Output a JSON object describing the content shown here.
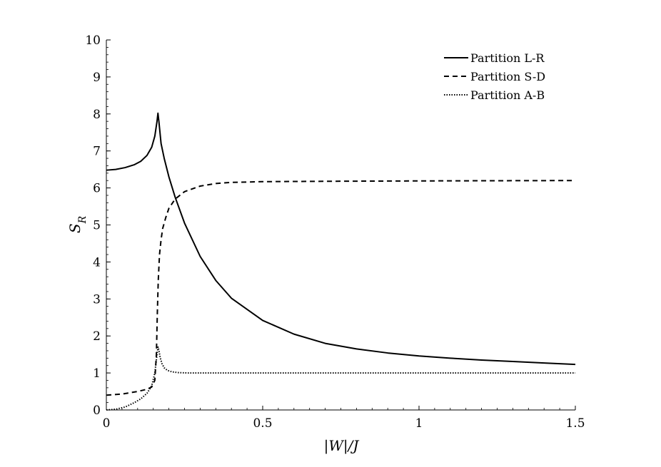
{
  "chart_data": {
    "type": "line",
    "title": "",
    "xlabel": "|W|/J",
    "ylabel": "S_R",
    "xlim": [
      0,
      1.5
    ],
    "ylim": [
      0,
      10
    ],
    "x_ticks": [
      0,
      0.5,
      1,
      1.5
    ],
    "x_tick_labels": [
      "0",
      "0.5",
      "1",
      "1.5"
    ],
    "y_ticks": [
      0,
      1,
      2,
      3,
      4,
      5,
      6,
      7,
      8,
      9,
      10
    ],
    "y_tick_labels": [
      "0",
      "1",
      "2",
      "3",
      "4",
      "5",
      "6",
      "7",
      "8",
      "9",
      "10"
    ],
    "grid": false,
    "legend_position": "top-right",
    "series": [
      {
        "name": "Partition L-R",
        "style": "solid",
        "x": [
          0,
          0.03,
          0.06,
          0.09,
          0.11,
          0.13,
          0.145,
          0.155,
          0.162,
          0.165,
          0.168,
          0.175,
          0.185,
          0.2,
          0.22,
          0.25,
          0.3,
          0.35,
          0.4,
          0.5,
          0.6,
          0.7,
          0.8,
          0.9,
          1.0,
          1.1,
          1.2,
          1.3,
          1.4,
          1.5
        ],
        "y": [
          6.48,
          6.5,
          6.55,
          6.63,
          6.72,
          6.88,
          7.1,
          7.4,
          7.8,
          8.02,
          7.8,
          7.2,
          6.8,
          6.3,
          5.75,
          5.05,
          4.15,
          3.5,
          3.02,
          2.42,
          2.05,
          1.8,
          1.65,
          1.54,
          1.46,
          1.4,
          1.35,
          1.31,
          1.27,
          1.23
        ]
      },
      {
        "name": "Partition S-D",
        "style": "dashed",
        "x": [
          0,
          0.05,
          0.1,
          0.13,
          0.145,
          0.155,
          0.16,
          0.163,
          0.166,
          0.17,
          0.175,
          0.18,
          0.19,
          0.2,
          0.22,
          0.25,
          0.3,
          0.35,
          0.4,
          0.5,
          0.7,
          1.0,
          1.5
        ],
        "y": [
          0.4,
          0.43,
          0.5,
          0.56,
          0.62,
          0.8,
          1.5,
          2.6,
          3.5,
          4.2,
          4.6,
          4.9,
          5.2,
          5.45,
          5.7,
          5.9,
          6.05,
          6.12,
          6.15,
          6.17,
          6.18,
          6.19,
          6.2
        ]
      },
      {
        "name": "Partition A-B",
        "style": "dotted",
        "x": [
          0,
          0.03,
          0.06,
          0.09,
          0.11,
          0.13,
          0.145,
          0.155,
          0.162,
          0.165,
          0.168,
          0.172,
          0.178,
          0.185,
          0.195,
          0.21,
          0.23,
          0.26,
          0.3,
          0.4,
          0.6,
          1.0,
          1.5
        ],
        "y": [
          0.0,
          0.02,
          0.08,
          0.2,
          0.3,
          0.45,
          0.65,
          1.0,
          1.5,
          1.7,
          1.62,
          1.42,
          1.25,
          1.14,
          1.07,
          1.03,
          1.01,
          1.0,
          1.0,
          1.0,
          1.0,
          1.0,
          1.0
        ]
      }
    ]
  }
}
